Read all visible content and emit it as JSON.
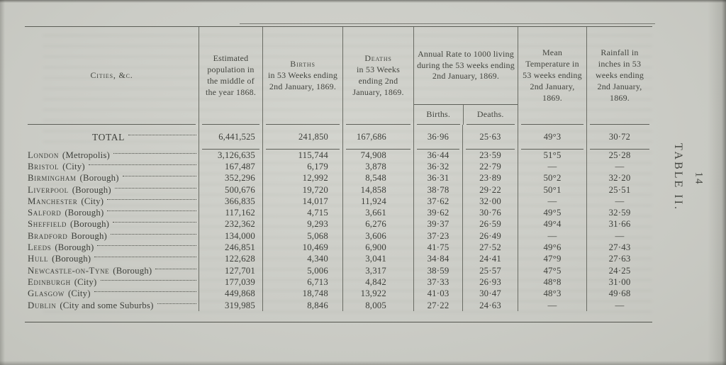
{
  "page": {
    "number": "14",
    "table_label": "TABLE II."
  },
  "table": {
    "header": {
      "cities": "Cities, &c.",
      "population": "Estimated population in the middle of the year 1868.",
      "births_title": "Births",
      "births_rest": "in 53 Weeks ending 2nd January, 1869.",
      "deaths_title": "Deaths",
      "deaths_rest": "in 53 Weeks ending 2nd January, 1869.",
      "annual_rate": "Annual Rate to 1000 living during the 53 weeks ending 2nd January, 1869.",
      "annual_rate_births": "Births.",
      "annual_rate_deaths": "Deaths.",
      "temperature": "Mean Temperature in 53 weeks ending 2nd January, 1869.",
      "rainfall": "Rainfall in inches in 53 weeks ending 2nd January, 1869."
    },
    "total": {
      "label": "TOTAL",
      "population": "6,441,525",
      "births": "241,850",
      "deaths": "167,686",
      "rate_births": "36·96",
      "rate_deaths": "25·63",
      "temperature": "49°3",
      "rainfall": "30·72"
    },
    "rows": [
      {
        "name": "London",
        "qualifier": "(Metropolis)",
        "population": "3,126,635",
        "births": "115,744",
        "deaths": "74,908",
        "rate_births": "36·44",
        "rate_deaths": "23·59",
        "temperature": "51°5",
        "rainfall": "25·28"
      },
      {
        "name": "Bristol",
        "qualifier": "(City)",
        "population": "167,487",
        "births": "6,179",
        "deaths": "3,878",
        "rate_births": "36·32",
        "rate_deaths": "22·79",
        "temperature": "—",
        "rainfall": "—"
      },
      {
        "name": "Birmingham",
        "qualifier": "(Borough)",
        "population": "352,296",
        "births": "12,992",
        "deaths": "8,548",
        "rate_births": "36·31",
        "rate_deaths": "23·89",
        "temperature": "50°2",
        "rainfall": "32·20"
      },
      {
        "name": "Liverpool",
        "qualifier": "(Borough)",
        "population": "500,676",
        "births": "19,720",
        "deaths": "14,858",
        "rate_births": "38·78",
        "rate_deaths": "29·22",
        "temperature": "50°1",
        "rainfall": "25·51"
      },
      {
        "name": "Manchester",
        "qualifier": "(City)",
        "population": "366,835",
        "births": "14,017",
        "deaths": "11,924",
        "rate_births": "37·62",
        "rate_deaths": "32·00",
        "temperature": "—",
        "rainfall": "—"
      },
      {
        "name": "Salford",
        "qualifier": "(Borough)",
        "population": "117,162",
        "births": "4,715",
        "deaths": "3,661",
        "rate_births": "39·62",
        "rate_deaths": "30·76",
        "temperature": "49°5",
        "rainfall": "32·59"
      },
      {
        "name": "Sheffield",
        "qualifier": "(Borough)",
        "population": "232,362",
        "births": "9,293",
        "deaths": "6,276",
        "rate_births": "39·37",
        "rate_deaths": "26·59",
        "temperature": "49°4",
        "rainfall": "31·66"
      },
      {
        "name": "Bradford",
        "qualifier": "Borough)",
        "population": "134,000",
        "births": "5,068",
        "deaths": "3,606",
        "rate_births": "37·23",
        "rate_deaths": "26·49",
        "temperature": "—",
        "rainfall": "—"
      },
      {
        "name": "Leeds",
        "qualifier": "(Borough)",
        "population": "246,851",
        "births": "10,469",
        "deaths": "6,900",
        "rate_births": "41·75",
        "rate_deaths": "27·52",
        "temperature": "49°6",
        "rainfall": "27·43"
      },
      {
        "name": "Hull",
        "qualifier": "(Borough)",
        "population": "122,628",
        "births": "4,340",
        "deaths": "3,041",
        "rate_births": "34·84",
        "rate_deaths": "24·41",
        "temperature": "47°9",
        "rainfall": "27·63"
      },
      {
        "name": "Newcastle-on-Tyne",
        "qualifier": "(Borough)",
        "population": "127,701",
        "births": "5,006",
        "deaths": "3,317",
        "rate_births": "38·59",
        "rate_deaths": "25·57",
        "temperature": "47°5",
        "rainfall": "24·25"
      },
      {
        "name": "Edinburgh",
        "qualifier": "(City)",
        "population": "177,039",
        "births": "6,713",
        "deaths": "4,842",
        "rate_births": "37·33",
        "rate_deaths": "26·93",
        "temperature": "48°8",
        "rainfall": "31·00"
      },
      {
        "name": "Glasgow",
        "qualifier": "(City)",
        "population": "449,868",
        "births": "18,748",
        "deaths": "13,922",
        "rate_births": "41·03",
        "rate_deaths": "30·47",
        "temperature": "48°3",
        "rainfall": "49·68"
      },
      {
        "name": "Dublin",
        "qualifier": "(City and some Suburbs)",
        "population": "319,985",
        "births": "8,846",
        "deaths": "8,005",
        "rate_births": "27·22",
        "rate_deaths": "24·63",
        "temperature": "—",
        "rainfall": "—"
      }
    ]
  }
}
